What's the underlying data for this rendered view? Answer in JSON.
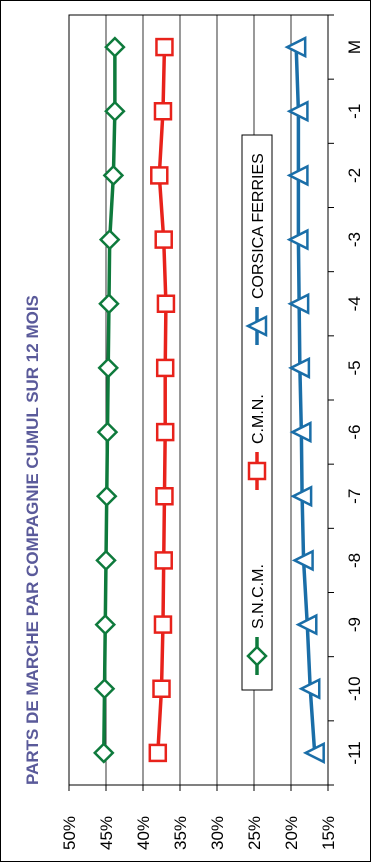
{
  "chart_data": {
    "type": "line",
    "title": "PARTS DE MARCHE PAR COMPAGNIE   CUMUL SUR 12 MOIS",
    "categories": [
      "-11",
      "-10",
      "-9",
      "-8",
      "-7",
      "-6",
      "-5",
      "-4",
      "-3",
      "-2",
      "-1",
      "M"
    ],
    "ylim": [
      0.15,
      0.5
    ],
    "y_ticks": [
      "15%",
      "20%",
      "25%",
      "30%",
      "35%",
      "40%",
      "45%",
      "50%"
    ],
    "grid": true,
    "legend_position": "center",
    "orientation": "rotated 90° (x axis runs top-to-bottom on right side)",
    "series": [
      {
        "name": "S.N.C.M.",
        "color": "#0e7a3c",
        "marker": "diamond",
        "values": [
          0.453,
          0.452,
          0.451,
          0.45,
          0.449,
          0.448,
          0.447,
          0.446,
          0.445,
          0.44,
          0.438,
          0.438
        ]
      },
      {
        "name": "C.M.N.",
        "color": "#e8221b",
        "marker": "square",
        "values": [
          0.38,
          0.375,
          0.373,
          0.372,
          0.371,
          0.37,
          0.37,
          0.369,
          0.372,
          0.378,
          0.373,
          0.371
        ]
      },
      {
        "name": "CORSICA FERRIES",
        "color": "#1a6ea8",
        "marker": "triangle",
        "values": [
          0.168,
          0.174,
          0.178,
          0.183,
          0.185,
          0.186,
          0.188,
          0.189,
          0.19,
          0.19,
          0.19,
          0.193
        ]
      }
    ]
  }
}
